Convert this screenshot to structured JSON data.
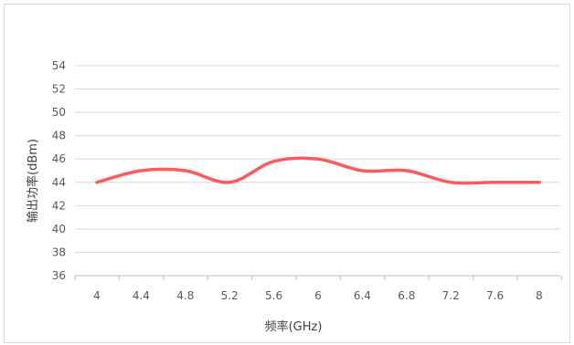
{
  "chart_data": {
    "type": "line",
    "title": "",
    "xlabel": "频率(GHz)",
    "ylabel": "输出功率(dBm)",
    "x": [
      4,
      4.4,
      4.8,
      5.2,
      5.6,
      6,
      6.4,
      6.8,
      7.2,
      7.6,
      8
    ],
    "x_tick_labels": [
      "4",
      "4.4",
      "4.8",
      "5.2",
      "5.6",
      "6",
      "6.4",
      "6.8",
      "7.2",
      "7.6",
      "8"
    ],
    "y_ticks": [
      36,
      38,
      40,
      42,
      44,
      46,
      48,
      50,
      52,
      54
    ],
    "ylim": [
      36,
      54
    ],
    "grid": "horizontal",
    "legend": "none",
    "series": [
      {
        "values": [
          44,
          45,
          45,
          44,
          45.8,
          46,
          45,
          45,
          44,
          44,
          44
        ],
        "color": "#ff5a5f",
        "smooth": true
      }
    ]
  }
}
